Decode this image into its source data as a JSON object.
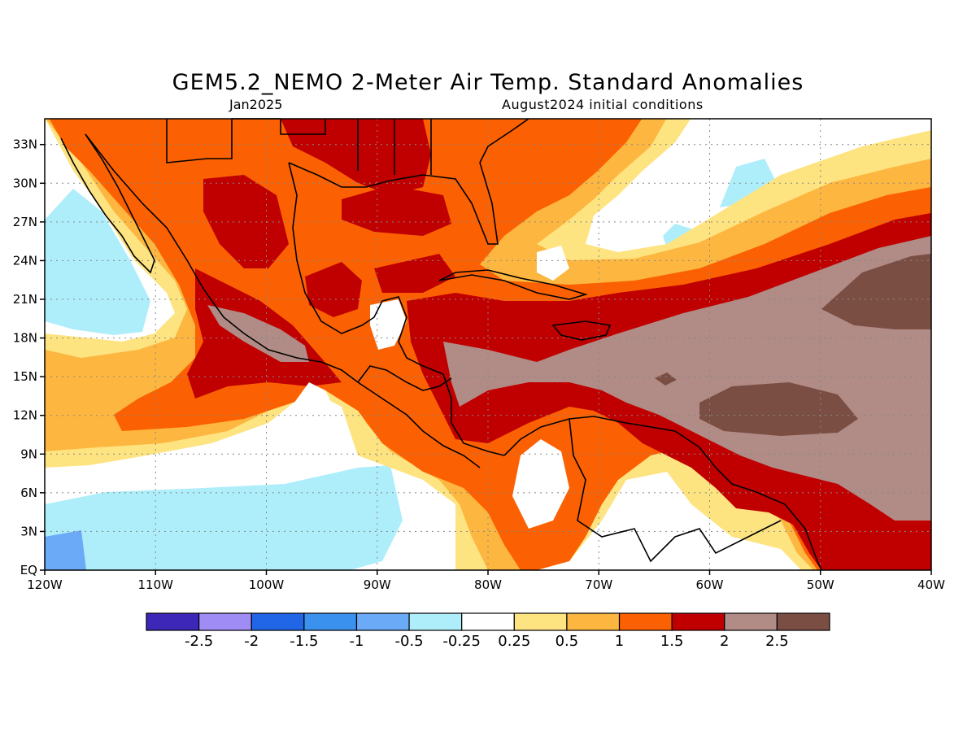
{
  "header": {
    "title": "GEM5.2_NEMO 2-Meter Air Temp. Standard Anomalies",
    "valid": "Jan2025",
    "init": "August2024 initial conditions"
  },
  "map": {
    "lon_range": [
      -120,
      -40
    ],
    "lat_range": [
      0,
      35
    ],
    "lat_ticks": [
      {
        "value": 33,
        "label": "33N"
      },
      {
        "value": 30,
        "label": "30N"
      },
      {
        "value": 27,
        "label": "27N"
      },
      {
        "value": 24,
        "label": "24N"
      },
      {
        "value": 21,
        "label": "21N"
      },
      {
        "value": 18,
        "label": "18N"
      },
      {
        "value": 15,
        "label": "15N"
      },
      {
        "value": 12,
        "label": "12N"
      },
      {
        "value": 9,
        "label": "9N"
      },
      {
        "value": 6,
        "label": "6N"
      },
      {
        "value": 3,
        "label": "3N"
      },
      {
        "value": 0,
        "label": "EQ"
      }
    ],
    "lon_ticks": [
      {
        "value": -120,
        "label": "120W"
      },
      {
        "value": -110,
        "label": "110W"
      },
      {
        "value": -100,
        "label": "100W"
      },
      {
        "value": -90,
        "label": "90W"
      },
      {
        "value": -80,
        "label": "80W"
      },
      {
        "value": -70,
        "label": "70W"
      },
      {
        "value": -60,
        "label": "60W"
      },
      {
        "value": -50,
        "label": "50W"
      },
      {
        "value": -40,
        "label": "40W"
      }
    ],
    "grid": true,
    "colors": {
      "cool1": "#aeeefa",
      "cool2": "#6aaaf6",
      "neutral": "#ffffff",
      "w1": "#fee381",
      "w2": "#fdb640",
      "w3": "#fb6102",
      "w4": "#c00000",
      "w5": "#b18b85",
      "w6": "#7b4e44"
    }
  },
  "colorbar": {
    "colors": [
      "#3d27b8",
      "#9f8cf5",
      "#2166e6",
      "#3b92ee",
      "#6aaaf6",
      "#aeeefa",
      "#ffffff",
      "#fee381",
      "#fdb640",
      "#fb6102",
      "#c00000",
      "#b18b85",
      "#7b4e44"
    ],
    "labels": [
      "-2.5",
      "-2",
      "-1.5",
      "-1",
      "-0.5",
      "-0.25",
      "0.25",
      "0.5",
      "1",
      "1.5",
      "2",
      "2.5"
    ]
  }
}
